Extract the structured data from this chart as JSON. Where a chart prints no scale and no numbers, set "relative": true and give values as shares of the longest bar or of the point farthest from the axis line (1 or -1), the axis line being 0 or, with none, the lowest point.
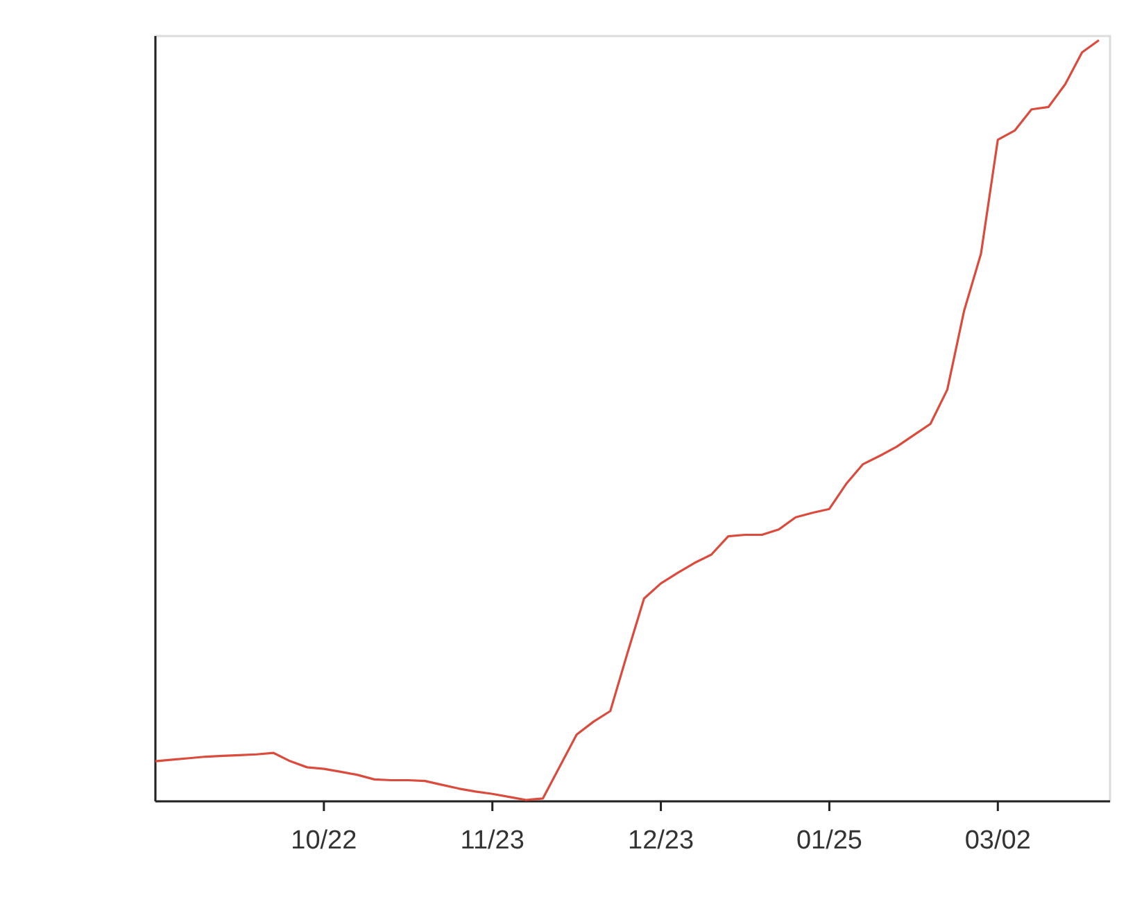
{
  "chart_data": {
    "type": "line",
    "relative": true,
    "color": "#dc4a3c",
    "marker": "none",
    "line_style": "solid",
    "categories": [
      null,
      null,
      null,
      null,
      null,
      null,
      null,
      null,
      null,
      null,
      "10/22",
      null,
      null,
      null,
      null,
      null,
      null,
      null,
      null,
      null,
      "11/23",
      null,
      null,
      null,
      null,
      null,
      null,
      null,
      null,
      null,
      "12/23",
      null,
      null,
      null,
      null,
      null,
      null,
      null,
      null,
      null,
      "01/25",
      null,
      null,
      null,
      null,
      null,
      null,
      null,
      null,
      null,
      "03/02",
      null,
      null,
      null,
      null,
      null,
      null
    ],
    "values": [
      0.051,
      0.053,
      0.055,
      0.057,
      0.058,
      0.059,
      0.06,
      0.062,
      0.051,
      0.043,
      0.041,
      0.037,
      0.033,
      0.027,
      0.026,
      0.026,
      0.025,
      0.02,
      0.015,
      0.011,
      0.008,
      0.004,
      0,
      0.002,
      0.044,
      0.086,
      0.103,
      0.117,
      0.192,
      0.265,
      0.285,
      0.299,
      0.312,
      0.323,
      0.347,
      0.349,
      0.349,
      0.356,
      0.372,
      0.378,
      0.383,
      0.416,
      0.442,
      0.453,
      0.465,
      0.48,
      0.495,
      0.54,
      0.644,
      0.719,
      0.869,
      0.881,
      0.909,
      0.912,
      0.942,
      0.984,
      1
    ]
  }
}
